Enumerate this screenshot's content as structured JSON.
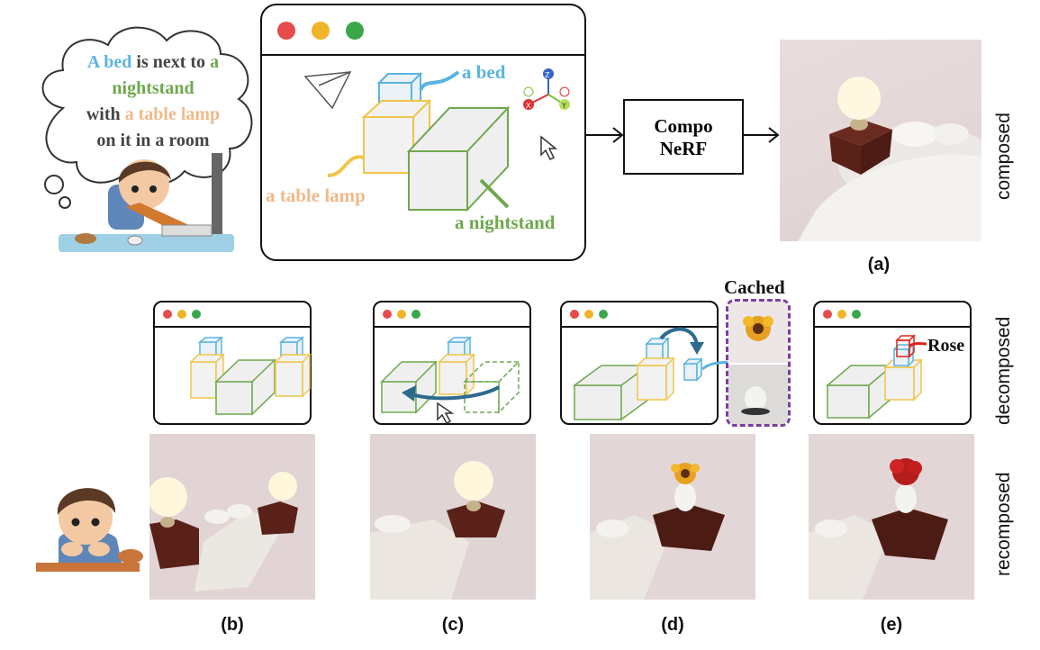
{
  "speech": {
    "line1_a": "A bed",
    "line1_b": " is next to ",
    "line1_c": "a",
    "line2": "nightstand",
    "line3_a": "with ",
    "line3_b": "a table lamp",
    "line4": "on it in a room"
  },
  "main_window": {
    "label_bed": "a bed",
    "label_lamp": "a table lamp",
    "label_nightstand": "a nightstand",
    "axis_z": "Z",
    "axis_x": "X",
    "axis_y": "Y"
  },
  "compo_box": {
    "line1": "Compo",
    "line2": "NeRF"
  },
  "row_labels": {
    "composed": "composed",
    "decomposed": "decomposed",
    "recomposed": "recomposed"
  },
  "captions": {
    "a": "(a)",
    "b": "(b)",
    "c": "(c)",
    "d": "(d)",
    "e": "(e)"
  },
  "cached_label": "Cached",
  "rose_label": "Rose",
  "colors": {
    "bed": "#5ab4e0",
    "lamp": "#f0b98a",
    "nightstand": "#6fa84d",
    "cached_border": "#7b3fa0",
    "rose": "#e0241b",
    "move_arrow": "#2d6a8f"
  }
}
